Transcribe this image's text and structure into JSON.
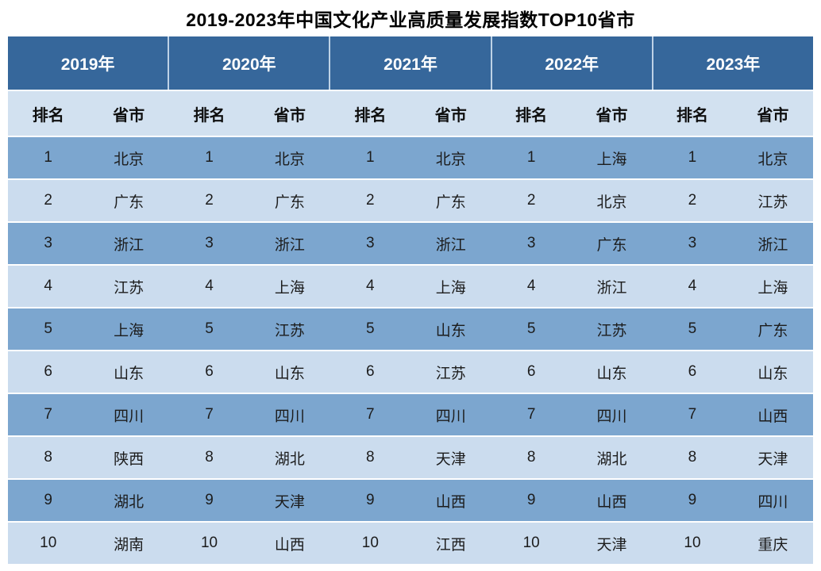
{
  "title": "2019-2023年中国文化产业高质量发展指数TOP10省市",
  "colors": {
    "year_header_bg": "#36679B",
    "year_header_text": "#ffffff",
    "sub_header_bg": "#D2E1F0",
    "row_odd_bg": "#7CA6CF",
    "row_even_bg": "#CBDCEE",
    "row_separator": "#ffffff",
    "text": "#1c1c1c"
  },
  "chart_data": {
    "type": "table",
    "title": "2019-2023年中国文化产业高质量发展指数TOP10省市",
    "column_groups": [
      "2019年",
      "2020年",
      "2021年",
      "2022年",
      "2023年"
    ],
    "sub_columns": [
      "排名",
      "省市"
    ],
    "ranks": [
      "1",
      "2",
      "3",
      "4",
      "5",
      "6",
      "7",
      "8",
      "9",
      "10"
    ],
    "rankings": {
      "2019年": [
        "北京",
        "广东",
        "浙江",
        "江苏",
        "上海",
        "山东",
        "四川",
        "陕西",
        "湖北",
        "湖南"
      ],
      "2020年": [
        "北京",
        "广东",
        "浙江",
        "上海",
        "江苏",
        "山东",
        "四川",
        "湖北",
        "天津",
        "山西"
      ],
      "2021年": [
        "北京",
        "广东",
        "浙江",
        "上海",
        "山东",
        "江苏",
        "四川",
        "天津",
        "山西",
        "江西"
      ],
      "2022年": [
        "上海",
        "北京",
        "广东",
        "浙江",
        "江苏",
        "山东",
        "四川",
        "湖北",
        "山西",
        "天津"
      ],
      "2023年": [
        "北京",
        "江苏",
        "浙江",
        "上海",
        "广东",
        "山东",
        "山西",
        "天津",
        "四川",
        "重庆"
      ]
    }
  }
}
